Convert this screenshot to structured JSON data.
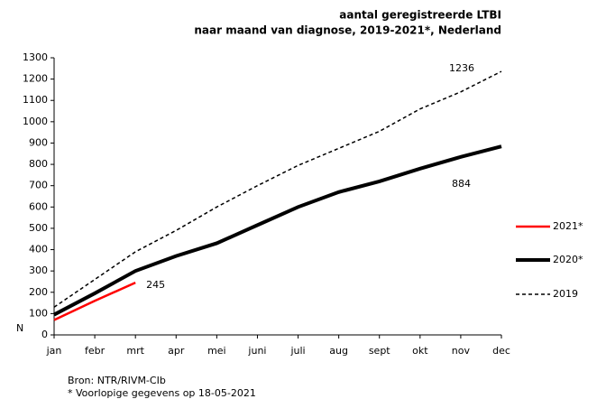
{
  "chart_data": {
    "type": "line",
    "title": [
      "aantal geregistreerde LTBI",
      "naar maand van diagnose, 2019-2021*, Nederland"
    ],
    "y_label": "N",
    "categories": [
      "jan",
      "febr",
      "mrt",
      "apr",
      "mei",
      "juni",
      "juli",
      "aug",
      "sept",
      "okt",
      "nov",
      "dec"
    ],
    "series": [
      {
        "name": "2021*",
        "color": "#ff0000",
        "style": "solid",
        "width": 2.5,
        "labeled_index": 2,
        "values": [
          70,
          160,
          245,
          null,
          null,
          null,
          null,
          null,
          null,
          null,
          null,
          null
        ]
      },
      {
        "name": "2020*",
        "color": "#000000",
        "style": "solid",
        "width": 4,
        "labeled_index": 11,
        "values": [
          95,
          195,
          300,
          370,
          430,
          515,
          600,
          670,
          720,
          780,
          835,
          884
        ]
      },
      {
        "name": "2019",
        "color": "#000000",
        "style": "dashed",
        "width": 1.5,
        "labeled_index": 11,
        "values": [
          130,
          260,
          390,
          490,
          600,
          700,
          795,
          875,
          955,
          1060,
          1140,
          1236
        ]
      }
    ],
    "ylim": [
      0,
      1300
    ],
    "yticks": [
      0,
      100,
      200,
      300,
      400,
      500,
      600,
      700,
      800,
      900,
      1000,
      1100,
      1200,
      1300
    ],
    "grid": false,
    "legend": "right",
    "footnotes": [
      "Bron: NTR/RIVM-CIb",
      "* Voorlopige gegevens op 18-05-2021"
    ]
  }
}
